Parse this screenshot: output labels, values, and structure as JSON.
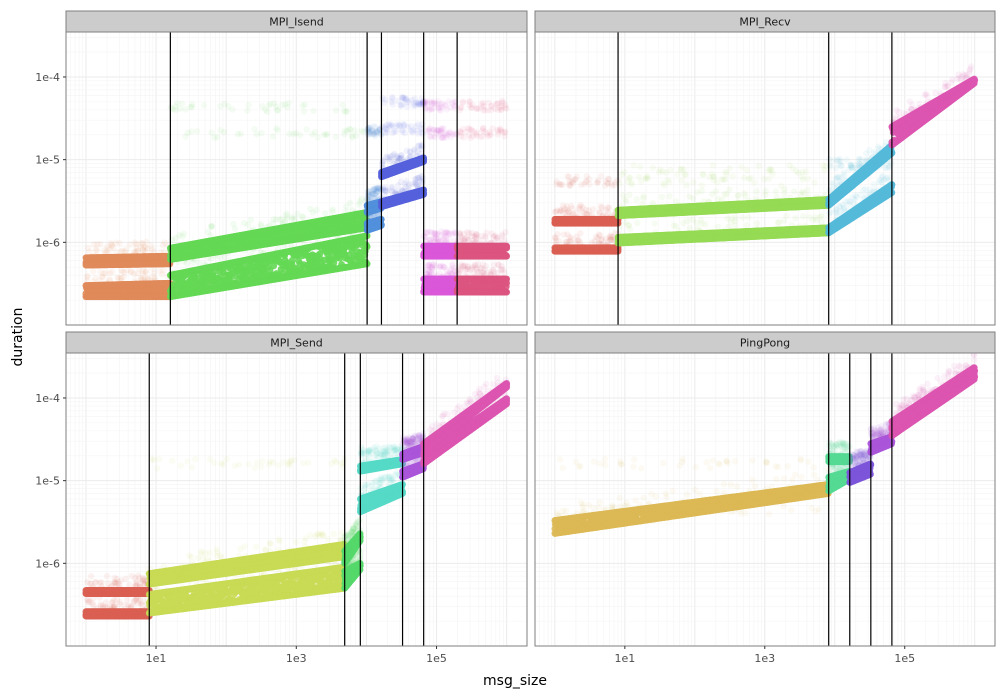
{
  "chart_data": {
    "type": "scatter",
    "xlabel": "msg_size",
    "ylabel": "duration",
    "x_scale": "log10",
    "y_scale": "log10",
    "xlim": [
      0.52,
      1950000
    ],
    "ylim": [
      1e-07,
      0.00035
    ],
    "x_ticks": [
      {
        "value": 10,
        "label": "1e1"
      },
      {
        "value": 1000,
        "label": "1e3"
      },
      {
        "value": 100000,
        "label": "1e5"
      }
    ],
    "y_ticks": [
      {
        "value": 0.0001,
        "label": "1e-4"
      },
      {
        "value": 1e-05,
        "label": "1e-5"
      },
      {
        "value": 1e-06,
        "label": "1e-6"
      }
    ],
    "grid": true,
    "legend": "none",
    "facets": [
      {
        "title": "MPI_Isend",
        "vlines": [
          16,
          10240,
          16384,
          65536,
          196608
        ],
        "clusters": [
          {
            "color": "#e0895a",
            "x": [
              1,
              16
            ],
            "bands": [
              [
                2.2e-07,
                3e-07,
                2.2e-07,
                3.2e-07
              ],
              [
                5.3e-07,
                6.5e-07,
                5.5e-07,
                6.8e-07
              ]
            ],
            "faint": []
          },
          {
            "color": "#64d854",
            "x": [
              16,
              10240
            ],
            "bands": [
              [
                2.2e-07,
                4e-07,
                5.5e-07,
                1.2e-06
              ],
              [
                6.2e-07,
                8.5e-07,
                1.5e-06,
                2.3e-06
              ]
            ],
            "faint": [
              2.1e-05,
              4.3e-05
            ]
          },
          {
            "color": "#5290db",
            "x": [
              10240,
              16384
            ],
            "bands": [
              [
                1.4e-06,
                1.7e-06,
                1.6e-06,
                1.9e-06
              ],
              [
                2.3e-06,
                2.8e-06,
                2.6e-06,
                3.1e-06
              ]
            ],
            "faint": [
              2.2e-05
            ]
          },
          {
            "color": "#5560dc",
            "x": [
              16384,
              65536
            ],
            "bands": [
              [
                2.7e-06,
                3.1e-06,
                3.8e-06,
                4.3e-06
              ],
              [
                6.2e-06,
                7e-06,
                9.5e-06,
                1.05e-05
              ]
            ],
            "faint": [
              2.35e-05,
              5e-05
            ]
          },
          {
            "color": "#da58d9",
            "x": [
              65536,
              196608
            ],
            "bands": [
              [
                2.5e-07,
                3.6e-07,
                2.5e-07,
                3.6e-07
              ],
              [
                6.8e-07,
                9e-07,
                6.8e-07,
                9e-07
              ]
            ],
            "faint": [
              2.1e-05,
              4.5e-05
            ]
          },
          {
            "color": "#dc5480",
            "x": [
              196608,
              1000000
            ],
            "bands": [
              [
                2.5e-07,
                3.6e-07,
                2.5e-07,
                3.6e-07
              ],
              [
                6.8e-07,
                9e-07,
                6.8e-07,
                9e-07
              ]
            ],
            "faint": [
              2.1e-05,
              4.5e-05
            ]
          }
        ]
      },
      {
        "title": "MPI_Recv",
        "vlines": [
          8,
          8192,
          65536
        ],
        "clusters": [
          {
            "color": "#d95f52",
            "x": [
              1,
              8
            ],
            "bands": [
              [
                7.8e-07,
                8.6e-07,
                7.8e-07,
                8.6e-07
              ],
              [
                1.7e-06,
                1.9e-06,
                1.7e-06,
                1.9e-06
              ]
            ],
            "faint": [
              5.5e-06
            ]
          },
          {
            "color": "#96da54",
            "x": [
              8,
              8192
            ],
            "bands": [
              [
                9.8e-07,
                1.15e-06,
                1.3e-06,
                1.5e-06
              ],
              [
                2.1e-06,
                2.45e-06,
                2.8e-06,
                3.3e-06
              ]
            ],
            "faint": [
              5.5e-06,
              7.5e-06
            ]
          },
          {
            "color": "#55bad9",
            "x": [
              8192,
              65536
            ],
            "bands": [
              [
                1.3e-06,
                1.5e-06,
                4e-06,
                5e-06
              ],
              [
                2.8e-06,
                3.3e-06,
                1.2e-05,
                1.5e-05
              ]
            ],
            "faint": [
              9e-06
            ]
          },
          {
            "color": "#db55b0",
            "x": [
              65536,
              1000000
            ],
            "bands": [
              [
                1.5e-05,
                2.5e-05,
                8.5e-05,
                9.5e-05
              ]
            ],
            "faint": []
          }
        ]
      },
      {
        "title": "MPI_Send",
        "vlines": [
          8,
          4900,
          8192,
          32768,
          65536
        ],
        "clusters": [
          {
            "color": "#d95f52",
            "x": [
              1,
              8
            ],
            "bands": [
              [
                2.3e-07,
                2.6e-07,
                2.3e-07,
                2.6e-07
              ],
              [
                4.3e-07,
                4.7e-07,
                4.3e-07,
                4.7e-07
              ]
            ],
            "faint": []
          },
          {
            "color": "#c9da54",
            "x": [
              8,
              4900
            ],
            "bands": [
              [
                2.5e-07,
                4.2e-07,
                5e-07,
                9e-07
              ],
              [
                5.6e-07,
                7.5e-07,
                1.2e-06,
                1.7e-06
              ]
            ],
            "faint": [
              1.6e-05
            ]
          },
          {
            "color": "#55d86a",
            "x": [
              4900,
              8192
            ],
            "bands": [
              [
                5e-07,
                8e-07,
                8.5e-07,
                1e-06
              ],
              [
                1e-06,
                1.4e-06,
                1.9e-06,
                2.3e-06
              ]
            ],
            "faint": []
          },
          {
            "color": "#55d9c6",
            "x": [
              8192,
              32768
            ],
            "bands": [
              [
                4.2e-06,
                6e-06,
                7e-06,
                9e-06
              ],
              [
                1.3e-05,
                1.5e-05,
                1.6e-05,
                1.8e-05
              ]
            ],
            "faint": [
              2.3e-05
            ]
          },
          {
            "color": "#aa55d9",
            "x": [
              32768,
              65536
            ],
            "bands": [
              [
                1.1e-05,
                1.3e-05,
                1.4e-05,
                1.6e-05
              ],
              [
                1.8e-05,
                2.1e-05,
                2.2e-05,
                2.6e-05
              ]
            ],
            "faint": [
              3e-05
            ]
          },
          {
            "color": "#db55b0",
            "x": [
              65536,
              1000000
            ],
            "bands": [
              [
                1.6e-05,
                2e-05,
                8.5e-05,
                9.8e-05
              ],
              [
                2.2e-05,
                2.8e-05,
                0.000135,
                0.00015
              ]
            ],
            "faint": []
          }
        ]
      },
      {
        "title": "PingPong",
        "vlines": [
          8192,
          16384,
          32768,
          65536
        ],
        "clusters": [
          {
            "color": "#dbb955",
            "x": [
              1,
              8192
            ],
            "bands": [
              [
                2.3e-06,
                3.3e-06,
                7e-06,
                9e-06
              ]
            ],
            "faint": [
              1.6e-05,
              4.5e-06
            ]
          },
          {
            "color": "#55d993",
            "x": [
              8192,
              16384
            ],
            "bands": [
              [
                7.5e-06,
                1.1e-05,
                1.05e-05,
                1.3e-05
              ],
              [
                1.7e-05,
                1.95e-05,
                1.7e-05,
                1.95e-05
              ]
            ],
            "faint": []
          },
          {
            "color": "#7c55d9",
            "x": [
              16384,
              32768
            ],
            "bands": [
              [
                9.5e-06,
                1.25e-05,
                1.2e-05,
                1.6e-05
              ]
            ],
            "faint": [
              2e-05
            ]
          },
          {
            "color": "#aa55d9",
            "x": [
              32768,
              65536
            ],
            "bands": [
              [
                2.2e-05,
                2.8e-05,
                2.8e-05,
                3.4e-05
              ]
            ],
            "faint": [
              3.6e-05
            ]
          },
          {
            "color": "#db55b0",
            "x": [
              65536,
              1000000
            ],
            "bands": [
              [
                3.5e-05,
                4.5e-05,
                0.00017,
                0.000195
              ],
              [
                4.2e-05,
                5.2e-05,
                0.00021,
                0.000235
              ]
            ],
            "faint": []
          }
        ]
      }
    ]
  }
}
